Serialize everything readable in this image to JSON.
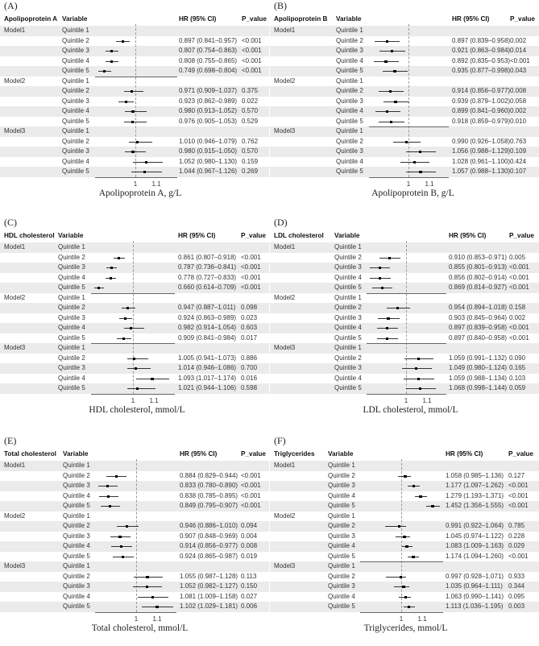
{
  "headers": {
    "variable": "Variable",
    "hr": "HR (95% CI)",
    "p": "P_value"
  },
  "chart_data": [
    {
      "type": "forest",
      "panel": "(A)",
      "group_header": "Apolipoprotein A",
      "xlabel": "Apolipoprotein A, g/L",
      "x_ticks": [
        "1",
        "1.1"
      ],
      "reference_line": 1,
      "separators_after_row": [
        4
      ],
      "models": [
        {
          "name": "Model1",
          "rows": [
            [
              "Quintile 1",
              "",
              ""
            ],
            [
              "Quintile 2",
              "0.897 (0.841–0.957)",
              "<0.001"
            ],
            [
              "Quintile 3",
              "0.807 (0.754–0.863)",
              "<0.001"
            ],
            [
              "Quintile 4",
              "0.808 (0.755–0.865)",
              "<0.001"
            ],
            [
              "Quintile 5",
              "0.749 (0.698–0.804)",
              "<0.001"
            ]
          ]
        },
        {
          "name": "Model2",
          "rows": [
            [
              "Quintile 1",
              "",
              ""
            ],
            [
              "Quintile 2",
              "0.971 (0.909–1.037)",
              "0.375"
            ],
            [
              "Quintile 3",
              "0.923 (0.862–0.989)",
              "0.022"
            ],
            [
              "Quintile 4",
              "0.980 (0.913–1.052)",
              "0.570"
            ],
            [
              "Quintile 5",
              "0.976 (0.905–1.053)",
              "0.529"
            ]
          ]
        },
        {
          "name": "Model3",
          "rows": [
            [
              "Quintile 1",
              "",
              ""
            ],
            [
              "Quintile 2",
              "1.010 (0.946–1.079)",
              "0.762"
            ],
            [
              "Quintile 3",
              "0.980 (0.915–1.050)",
              "0.570"
            ],
            [
              "Quintile 4",
              "1.052 (0.980–1.130)",
              "0.159"
            ],
            [
              "Quintile 5",
              "1.044 (0.967–1.126)",
              "0.269"
            ]
          ]
        }
      ]
    },
    {
      "type": "forest",
      "panel": "(B)",
      "group_header": "Apolipoprotein B",
      "xlabel": "Apolipoprotein B, g/L",
      "x_ticks": [
        "1",
        "1.1"
      ],
      "reference_line": 1,
      "separators_after_row": [
        9
      ],
      "models": [
        {
          "name": "Model1",
          "rows": [
            [
              "Quintile 1",
              "",
              ""
            ],
            [
              "Quintile 2",
              "0.897 (0.839–0.958)",
              "0.002"
            ],
            [
              "Quintile 3",
              "0.921 (0.863–0.984)",
              "0.014"
            ],
            [
              "Quintile 4",
              "0.892 (0.835–0.953)",
              "<0.001"
            ],
            [
              "Quintile 5",
              "0.935 (0.877–0.998)",
              "0.043"
            ]
          ]
        },
        {
          "name": "Model2",
          "rows": [
            [
              "Quintile 1",
              "",
              ""
            ],
            [
              "Quintile 2",
              "0.914 (0.856–0.977)",
              "0.008"
            ],
            [
              "Quintile 3",
              "0.939 (0.879–1.002)",
              "0.058"
            ],
            [
              "Quintile 4",
              "0.899 (0.841–0.960)",
              "0.002"
            ],
            [
              "Quintile 5",
              "0.918 (0.859–0.979)",
              "0.010"
            ]
          ]
        },
        {
          "name": "Model3",
          "rows": [
            [
              "Quintile 1",
              "",
              ""
            ],
            [
              "Quintile 2",
              "0.990 (0.926–1.058)",
              "0.763"
            ],
            [
              "Quintile 3",
              "1.056 (0.988–1.129)",
              "0.109"
            ],
            [
              "Quintile 4",
              "1.028 (0.961–1.100)",
              "0.424"
            ],
            [
              "Quintile 5",
              "1.057 (0.988–1.130)",
              "0.107"
            ]
          ]
        }
      ]
    },
    {
      "type": "forest",
      "panel": "(C)",
      "group_header": "HDL cholesterol",
      "xlabel": "HDL cholesterol, mmol/L",
      "x_ticks": [
        "1",
        "1.1"
      ],
      "reference_line": 1,
      "separators_after_row": [
        4,
        9
      ],
      "models": [
        {
          "name": "Model1",
          "rows": [
            [
              "Quintile 1",
              "",
              ""
            ],
            [
              "Quintile 2",
              "0.861 (0.807–0.918)",
              "<0.001"
            ],
            [
              "Quintile 3",
              "0.787 (0.736–0.841)",
              "<0.001"
            ],
            [
              "Quintile 4",
              "0.778 (0.727–0.833)",
              "<0.001"
            ],
            [
              "Quintile 5",
              "0.660 (0.614–0.709)",
              "<0.001"
            ]
          ]
        },
        {
          "name": "Model2",
          "rows": [
            [
              "Quintile 1",
              "",
              ""
            ],
            [
              "Quintile 2",
              "0.947 (0.887–1.011)",
              "0.098"
            ],
            [
              "Quintile 3",
              "0.924 (0.863–0.989)",
              "0.023"
            ],
            [
              "Quintile 4",
              "0.982 (0.914–1.054)",
              "0.603"
            ],
            [
              "Quintile 5",
              "0.909 (0.841–0.984)",
              "0.017"
            ]
          ]
        },
        {
          "name": "Model3",
          "rows": [
            [
              "Quintile 1",
              "",
              ""
            ],
            [
              "Quintile 2",
              "1.005 (0.941–1.073)",
              "0.886"
            ],
            [
              "Quintile 3",
              "1.014 (0.946–1.086)",
              "0.700"
            ],
            [
              "Quintile 4",
              "1.093 (1.017–1.174)",
              "0.016"
            ],
            [
              "Quintile 5",
              "1.021 (0.944–1.106)",
              "0.598"
            ]
          ]
        }
      ]
    },
    {
      "type": "forest",
      "panel": "(D)",
      "group_header": "LDL cholesterol",
      "xlabel": "LDL cholesterol, mmol/L",
      "x_ticks": [
        "1",
        "1.1"
      ],
      "reference_line": 1,
      "separators_after_row": [
        4,
        9
      ],
      "models": [
        {
          "name": "Model1",
          "rows": [
            [
              "Quintile 1",
              "",
              ""
            ],
            [
              "Quintile 2",
              "0.910 (0.853–0.971)",
              "0.005"
            ],
            [
              "Quintile 3",
              "0.855 (0.801–0.913)",
              "<0.001"
            ],
            [
              "Quintile 4",
              "0.856 (0.802–0.914)",
              "<0.001"
            ],
            [
              "Quintile 5",
              "0.869 (0.814–0.927)",
              "<0.001"
            ]
          ]
        },
        {
          "name": "Model2",
          "rows": [
            [
              "Quintile 1",
              "",
              ""
            ],
            [
              "Quintile 2",
              "0.954 (0.894–1.018)",
              "0.158"
            ],
            [
              "Quintile 3",
              "0.903 (0.845–0.964)",
              "0.002"
            ],
            [
              "Quintile 4",
              "0.897 (0.839–0.958)",
              "<0.001"
            ],
            [
              "Quintile 5",
              "0.897 (0.840–0.958)",
              "<0.001"
            ]
          ]
        },
        {
          "name": "Model3",
          "rows": [
            [
              "Quintile 1",
              "",
              ""
            ],
            [
              "Quintile 2",
              "1.059 (0.991–1.132)",
              "0.090"
            ],
            [
              "Quintile 3",
              "1.049 (0.980–1.124)",
              "0.165"
            ],
            [
              "Quintile 4",
              "1.059 (0.988–1.134)",
              "0.103"
            ],
            [
              "Quintile 5",
              "1.068 (0.998–1.144)",
              "0.059"
            ]
          ]
        }
      ]
    },
    {
      "type": "forest",
      "panel": "(E)",
      "group_header": "Total cholesterol",
      "xlabel": "Total cholesterol, mmol/L",
      "x_ticks": [
        "1",
        "1.1"
      ],
      "reference_line": 1,
      "separators_after_row": [],
      "models": [
        {
          "name": "Model1",
          "rows": [
            [
              "Quintile 1",
              "",
              ""
            ],
            [
              "Quintile 2",
              "0.884 (0.829–0.944)",
              "<0.001"
            ],
            [
              "Quintile 3",
              "0.833 (0.780–0.890)",
              "<0.001"
            ],
            [
              "Quintile 4",
              "0.838 (0.785–0.895)",
              "<0.001"
            ],
            [
              "Quintile 5",
              "0.849 (0.795–0.907)",
              "<0.001"
            ]
          ]
        },
        {
          "name": "Model2",
          "rows": [
            [
              "Quintile 1",
              "",
              ""
            ],
            [
              "Quintile 2",
              "0.946 (0.886–1.010)",
              "0.094"
            ],
            [
              "Quintile 3",
              "0.907 (0.848–0.969)",
              "0.004"
            ],
            [
              "Quintile 4",
              "0.914 (0.856–0.977)",
              "0.008"
            ],
            [
              "Quintile 5",
              "0.924 (0.865–0.987)",
              "0.019"
            ]
          ]
        },
        {
          "name": "Model3",
          "rows": [
            [
              "Quintile 1",
              "",
              ""
            ],
            [
              "Quintile 2",
              "1.055 (0.987–1.128)",
              "0.113"
            ],
            [
              "Quintile 3",
              "1.052 (0.982–1.127)",
              "0.150"
            ],
            [
              "Quintile 4",
              "1.081 (1.009–1.158)",
              "0.027"
            ],
            [
              "Quintile 5",
              "1.102 (1.029–1.181)",
              "0.006"
            ]
          ]
        }
      ]
    },
    {
      "type": "forest",
      "panel": "(F)",
      "group_header": "Triglycerides",
      "xlabel": "Triglycerides, mmol/L",
      "x_ticks": [
        "1",
        "1.1"
      ],
      "reference_line": 1,
      "separators_after_row": [
        9
      ],
      "models": [
        {
          "name": "Model1",
          "rows": [
            [
              "Quintile 1",
              "",
              ""
            ],
            [
              "Quintile 2",
              "1.058 (0.985–1.136)",
              "0.127"
            ],
            [
              "Quintile 3",
              "1.177 (1.097–1.262)",
              "<0.001"
            ],
            [
              "Quintile 4",
              "1.279 (1.193–1.371)",
              "<0.001"
            ],
            [
              "Quintile 5",
              "1.452 (1.356–1.555)",
              "<0.001"
            ]
          ]
        },
        {
          "name": "Model2",
          "rows": [
            [
              "Quintile 1",
              "",
              ""
            ],
            [
              "Quintile 2",
              "0.991 (0.922–1.064)",
              "0.785"
            ],
            [
              "Quintile 3",
              "1.045 (0.974–1.122)",
              "0.228"
            ],
            [
              "Quintile 4",
              "1.083 (1.009–1.163)",
              "0.029"
            ],
            [
              "Quintile 5",
              "1.174 (1.094–1.260)",
              "<0.001"
            ]
          ]
        },
        {
          "name": "Model3",
          "rows": [
            [
              "Quintile 1",
              "",
              ""
            ],
            [
              "Quintile 2",
              "0.997 (0.928–1.071)",
              "0.933"
            ],
            [
              "Quintile 3",
              "1.035 (0.964–1.111)",
              "0.344"
            ],
            [
              "Quintile 4",
              "1.063 (0.990–1.141)",
              "0.095"
            ],
            [
              "Quintile 5",
              "1.113 (1.036–1.195)",
              "0.003"
            ]
          ]
        }
      ]
    }
  ]
}
